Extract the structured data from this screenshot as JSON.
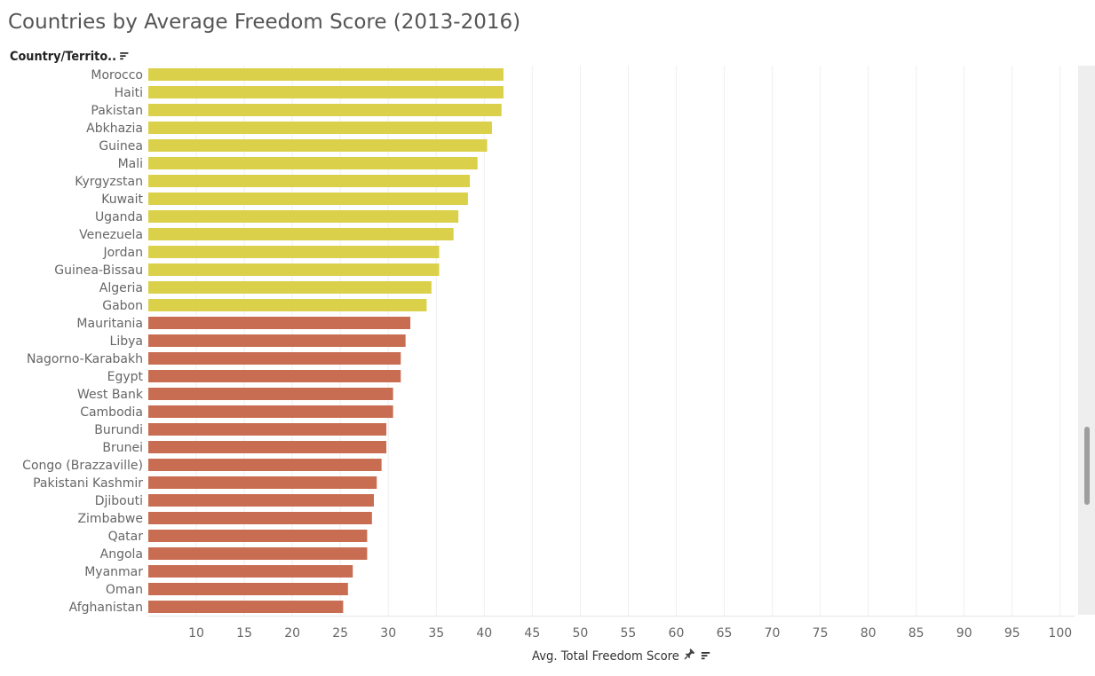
{
  "title": "Countries by Average Freedom Score (2013-2016)",
  "row_header": {
    "label": "Country/Territo..",
    "sort_icon": "sort-descending-icon"
  },
  "axis_footer": {
    "label": "Avg. Total Freedom Score",
    "pin_icon": "pin-icon",
    "sort_icon": "sort-icon"
  },
  "colors": {
    "partly_free": "#DBD04A",
    "not_free": "#C86D51",
    "grid": "#EFEFEF",
    "text": "#666666"
  },
  "chart_data": {
    "type": "bar",
    "orientation": "horizontal",
    "title": "Countries by Average Freedom Score (2013-2016)",
    "xlabel": "Avg. Total Freedom Score",
    "ylabel": "Country/Territo..",
    "xlim": [
      5,
      101.5
    ],
    "xticks": [
      10,
      15,
      20,
      25,
      30,
      35,
      40,
      45,
      50,
      55,
      60,
      65,
      70,
      75,
      80,
      85,
      90,
      95,
      100
    ],
    "grid": true,
    "categories": [
      "Morocco",
      "Haiti",
      "Pakistan",
      "Abkhazia",
      "Guinea",
      "Mali",
      "Kyrgyzstan",
      "Kuwait",
      "Uganda",
      "Venezuela",
      "Jordan",
      "Guinea-Bissau",
      "Algeria",
      "Gabon",
      "Mauritania",
      "Libya",
      "Nagorno-Karabakh",
      "Egypt",
      "West Bank",
      "Cambodia",
      "Burundi",
      "Brunei",
      "Congo (Brazzaville)",
      "Pakistani Kashmir",
      "Djibouti",
      "Zimbabwe",
      "Qatar",
      "Angola",
      "Myanmar",
      "Oman",
      "Afghanistan"
    ],
    "values": [
      42.0,
      42.0,
      41.8,
      40.8,
      40.3,
      39.3,
      38.5,
      38.3,
      37.3,
      36.8,
      35.3,
      35.3,
      34.5,
      34.0,
      32.3,
      31.8,
      31.3,
      31.3,
      30.5,
      30.5,
      29.8,
      29.8,
      29.3,
      28.8,
      28.5,
      28.3,
      27.8,
      27.8,
      26.3,
      25.8,
      25.3
    ],
    "groups": [
      "partly_free",
      "partly_free",
      "partly_free",
      "partly_free",
      "partly_free",
      "partly_free",
      "partly_free",
      "partly_free",
      "partly_free",
      "partly_free",
      "partly_free",
      "partly_free",
      "partly_free",
      "partly_free",
      "not_free",
      "not_free",
      "not_free",
      "not_free",
      "not_free",
      "not_free",
      "not_free",
      "not_free",
      "not_free",
      "not_free",
      "not_free",
      "not_free",
      "not_free",
      "not_free",
      "not_free",
      "not_free",
      "not_free"
    ]
  }
}
